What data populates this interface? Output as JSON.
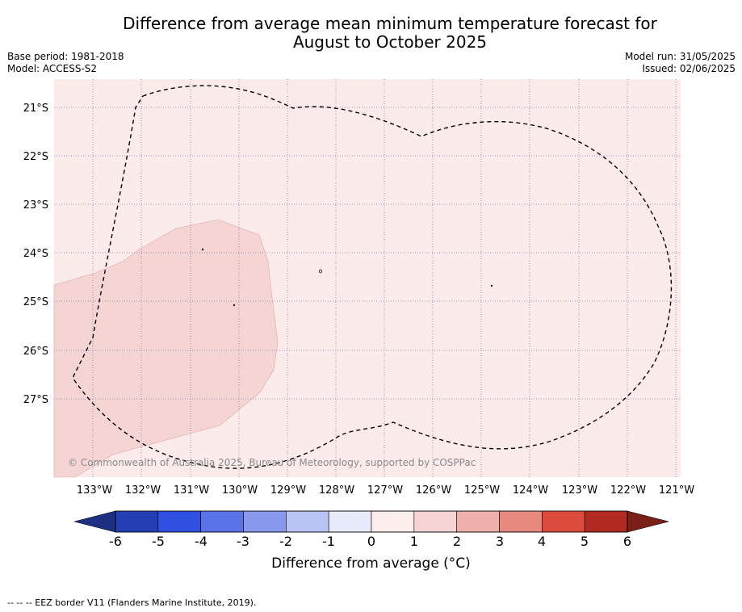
{
  "header": {
    "title_line1": "Difference from average mean minimum temperature forecast for",
    "title_line2": "August to October 2025",
    "base_period": "Base period: 1981-2018",
    "model": "Model: ACCESS-S2",
    "model_run": "Model run: 31/05/2025",
    "issued": "Issued: 02/06/2025"
  },
  "map": {
    "copyright": "© Commonwealth of Australia 2025, Bureau of Meteorology, supported by COSPPac",
    "lon_labels": [
      "133°W",
      "132°W",
      "131°W",
      "130°W",
      "129°W",
      "128°W",
      "127°W",
      "126°W",
      "125°W",
      "124°W",
      "123°W",
      "122°W",
      "121°W"
    ],
    "lat_labels": [
      "21°S",
      "22°S",
      "23°S",
      "24°S",
      "25°S",
      "26°S",
      "27°S"
    ],
    "fill_colors": {
      "zero_to_one": "#fbebea",
      "one_to_two": "#f4d5d4"
    },
    "eez_line_style": "dashed"
  },
  "colorbar": {
    "title": "Difference from average (°C)",
    "ticks": [
      "-6",
      "-5",
      "-4",
      "-3",
      "-2",
      "-1",
      "0",
      "1",
      "2",
      "3",
      "4",
      "5",
      "6"
    ],
    "colors": [
      "#243fb3",
      "#2f50e0",
      "#5a73e8",
      "#8899ed",
      "#bac4f4",
      "#e8ebfc",
      "#fdeeee",
      "#f5d4d3",
      "#eeb0ab",
      "#e88980",
      "#dc4b3e",
      "#b02a22"
    ],
    "under_color": "#1c2f80",
    "over_color": "#7a1e17"
  },
  "footer": {
    "eez_legend": "--  --  -- EEZ border V11 (Flanders Marine Institute, 2019)."
  }
}
